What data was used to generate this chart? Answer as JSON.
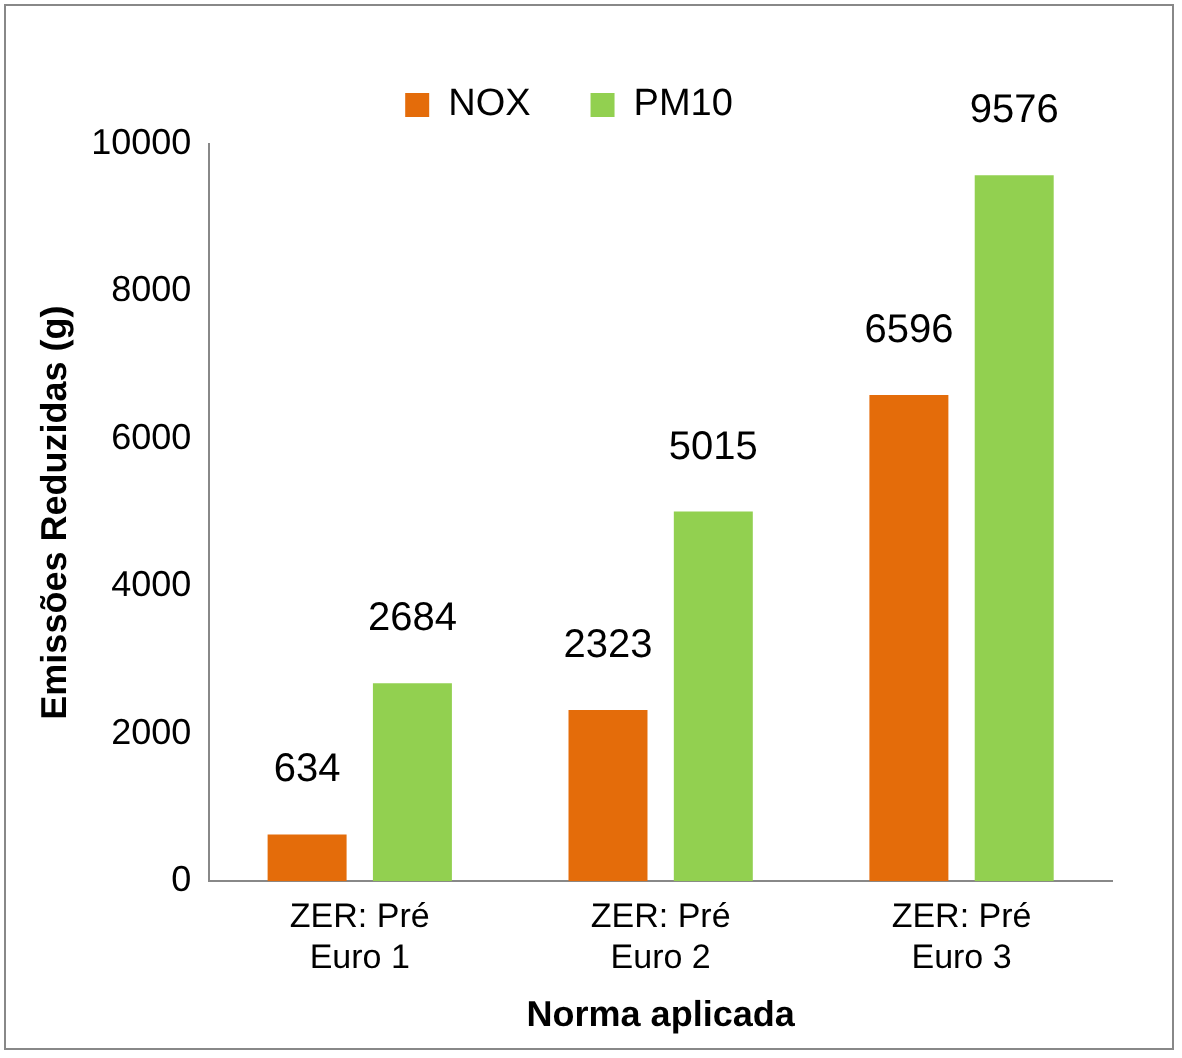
{
  "chart_data": {
    "type": "bar",
    "xlabel": "Norma aplicada",
    "ylabel": "Emissões Reduzidas (g)",
    "categories": [
      "ZER: Pré Euro 1",
      "ZER: Pré Euro 2",
      "ZER: Pré Euro 3"
    ],
    "series": [
      {
        "name": "NOX",
        "color": "#e46c0a",
        "values": [
          634,
          2323,
          6596
        ]
      },
      {
        "name": "PM10",
        "color": "#92d050",
        "values": [
          2684,
          5015,
          9576
        ]
      }
    ],
    "ylim": [
      0,
      10000
    ],
    "yticks": [
      0,
      2000,
      4000,
      6000,
      8000,
      10000
    ],
    "grid": false,
    "legend": "top",
    "data_labels": true
  }
}
